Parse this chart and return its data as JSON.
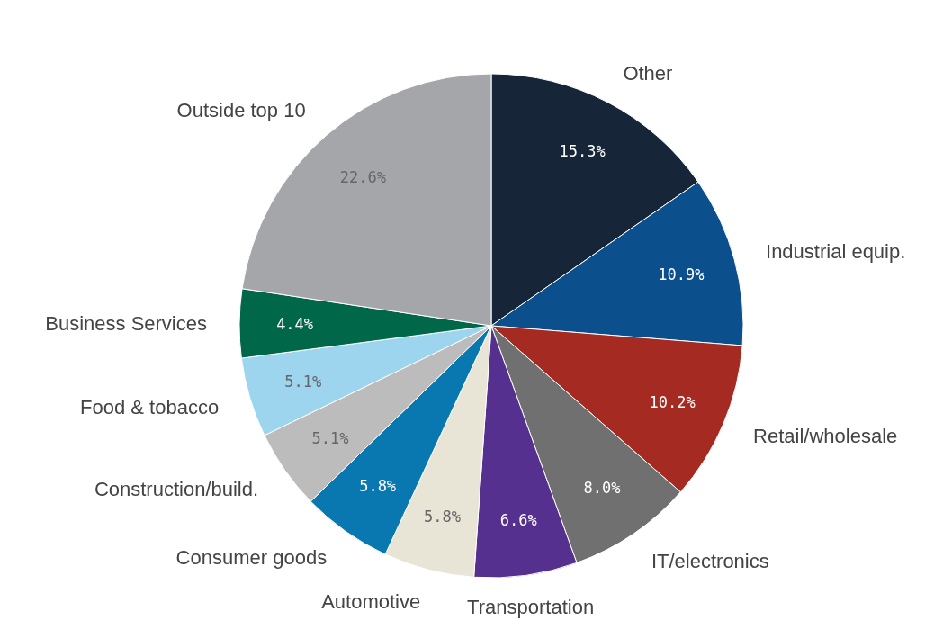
{
  "chart_data": {
    "type": "pie",
    "categories": [
      "Other",
      "Industrial equip.",
      "Retail/wholesale",
      "IT/electronics",
      "Transportation",
      "Automotive",
      "Consumer goods",
      "Construction/build.",
      "Food & tobacco",
      "Business Services",
      "Outside top 10"
    ],
    "values": [
      15.3,
      10.9,
      10.2,
      8.0,
      6.6,
      5.8,
      5.8,
      5.1,
      5.1,
      4.4,
      22.6
    ],
    "value_labels": [
      "15.3%",
      "10.9%",
      "10.2%",
      "8.0%",
      "6.6%",
      "5.8%",
      "5.8%",
      "5.1%",
      "5.1%",
      "4.4%",
      "22.6%"
    ],
    "colors": [
      "#172538",
      "#0b4f8c",
      "#a52a22",
      "#707070",
      "#55308f",
      "#e8e4d6",
      "#0a78b0",
      "#bcbcbc",
      "#9dd5ee",
      "#006848",
      "#a5a6aa"
    ]
  }
}
